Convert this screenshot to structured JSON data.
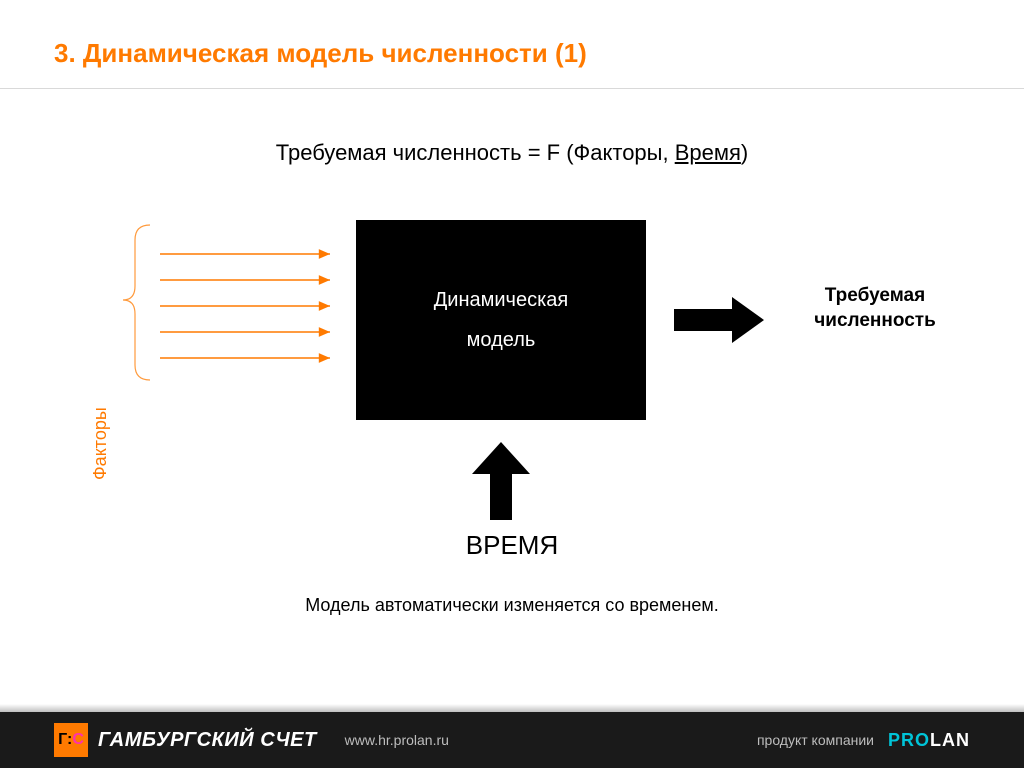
{
  "title": {
    "text": "3. Динамическая модель численности (1)",
    "color": "#ff7a00",
    "fontsize": 26
  },
  "formula": {
    "prefix": "Требуемая численность = F (Факторы, ",
    "underlined": "Время",
    "suffix": ")",
    "fontsize": 22,
    "color": "#000000"
  },
  "diagram": {
    "type": "flowchart",
    "factors_label": {
      "text": "Факторы",
      "color": "#ff7a00"
    },
    "brace": {
      "color": "#ff9a3c",
      "stroke_width": 1.2,
      "height": 160
    },
    "input_arrows": {
      "count": 5,
      "color": "#ff7a00",
      "length": 170,
      "spacing": 26,
      "stroke_width": 1.6,
      "head_size": 7
    },
    "black_box": {
      "line1": "Динамическая",
      "line2": "модель",
      "bg": "#000000",
      "fg": "#ffffff"
    },
    "output_arrow": {
      "color": "#000000",
      "width": 90,
      "shaft_height": 22,
      "head_width": 30,
      "head_height": 46
    },
    "output_label": {
      "line1": "Требуемая",
      "line2": "численность",
      "color": "#000000"
    },
    "time_arrow": {
      "color": "#000000",
      "shaft_width": 22,
      "shaft_height": 46,
      "head_width": 58,
      "head_height": 32
    },
    "time_label": {
      "text": "ВРЕМЯ",
      "color": "#000000"
    },
    "caption": {
      "text": "Модель автоматически изменяется со временем.",
      "color": "#000000"
    }
  },
  "footer": {
    "bg": "#1a1a1a",
    "logo": {
      "square_bg": "#ff7a00",
      "glyph_left": "Г",
      "glyph_sep": ":",
      "glyph_right": "С",
      "glyph_right_color": "#ff2fae",
      "brand": "ГАМБУРГСКИЙ СЧЕТ"
    },
    "url": "www.hr.prolan.ru",
    "right_text": "продукт компании",
    "prolan": {
      "p1": "PRO",
      "p2": "LAN",
      "color1": "#00c4d8",
      "color2": "#ffffff"
    }
  }
}
